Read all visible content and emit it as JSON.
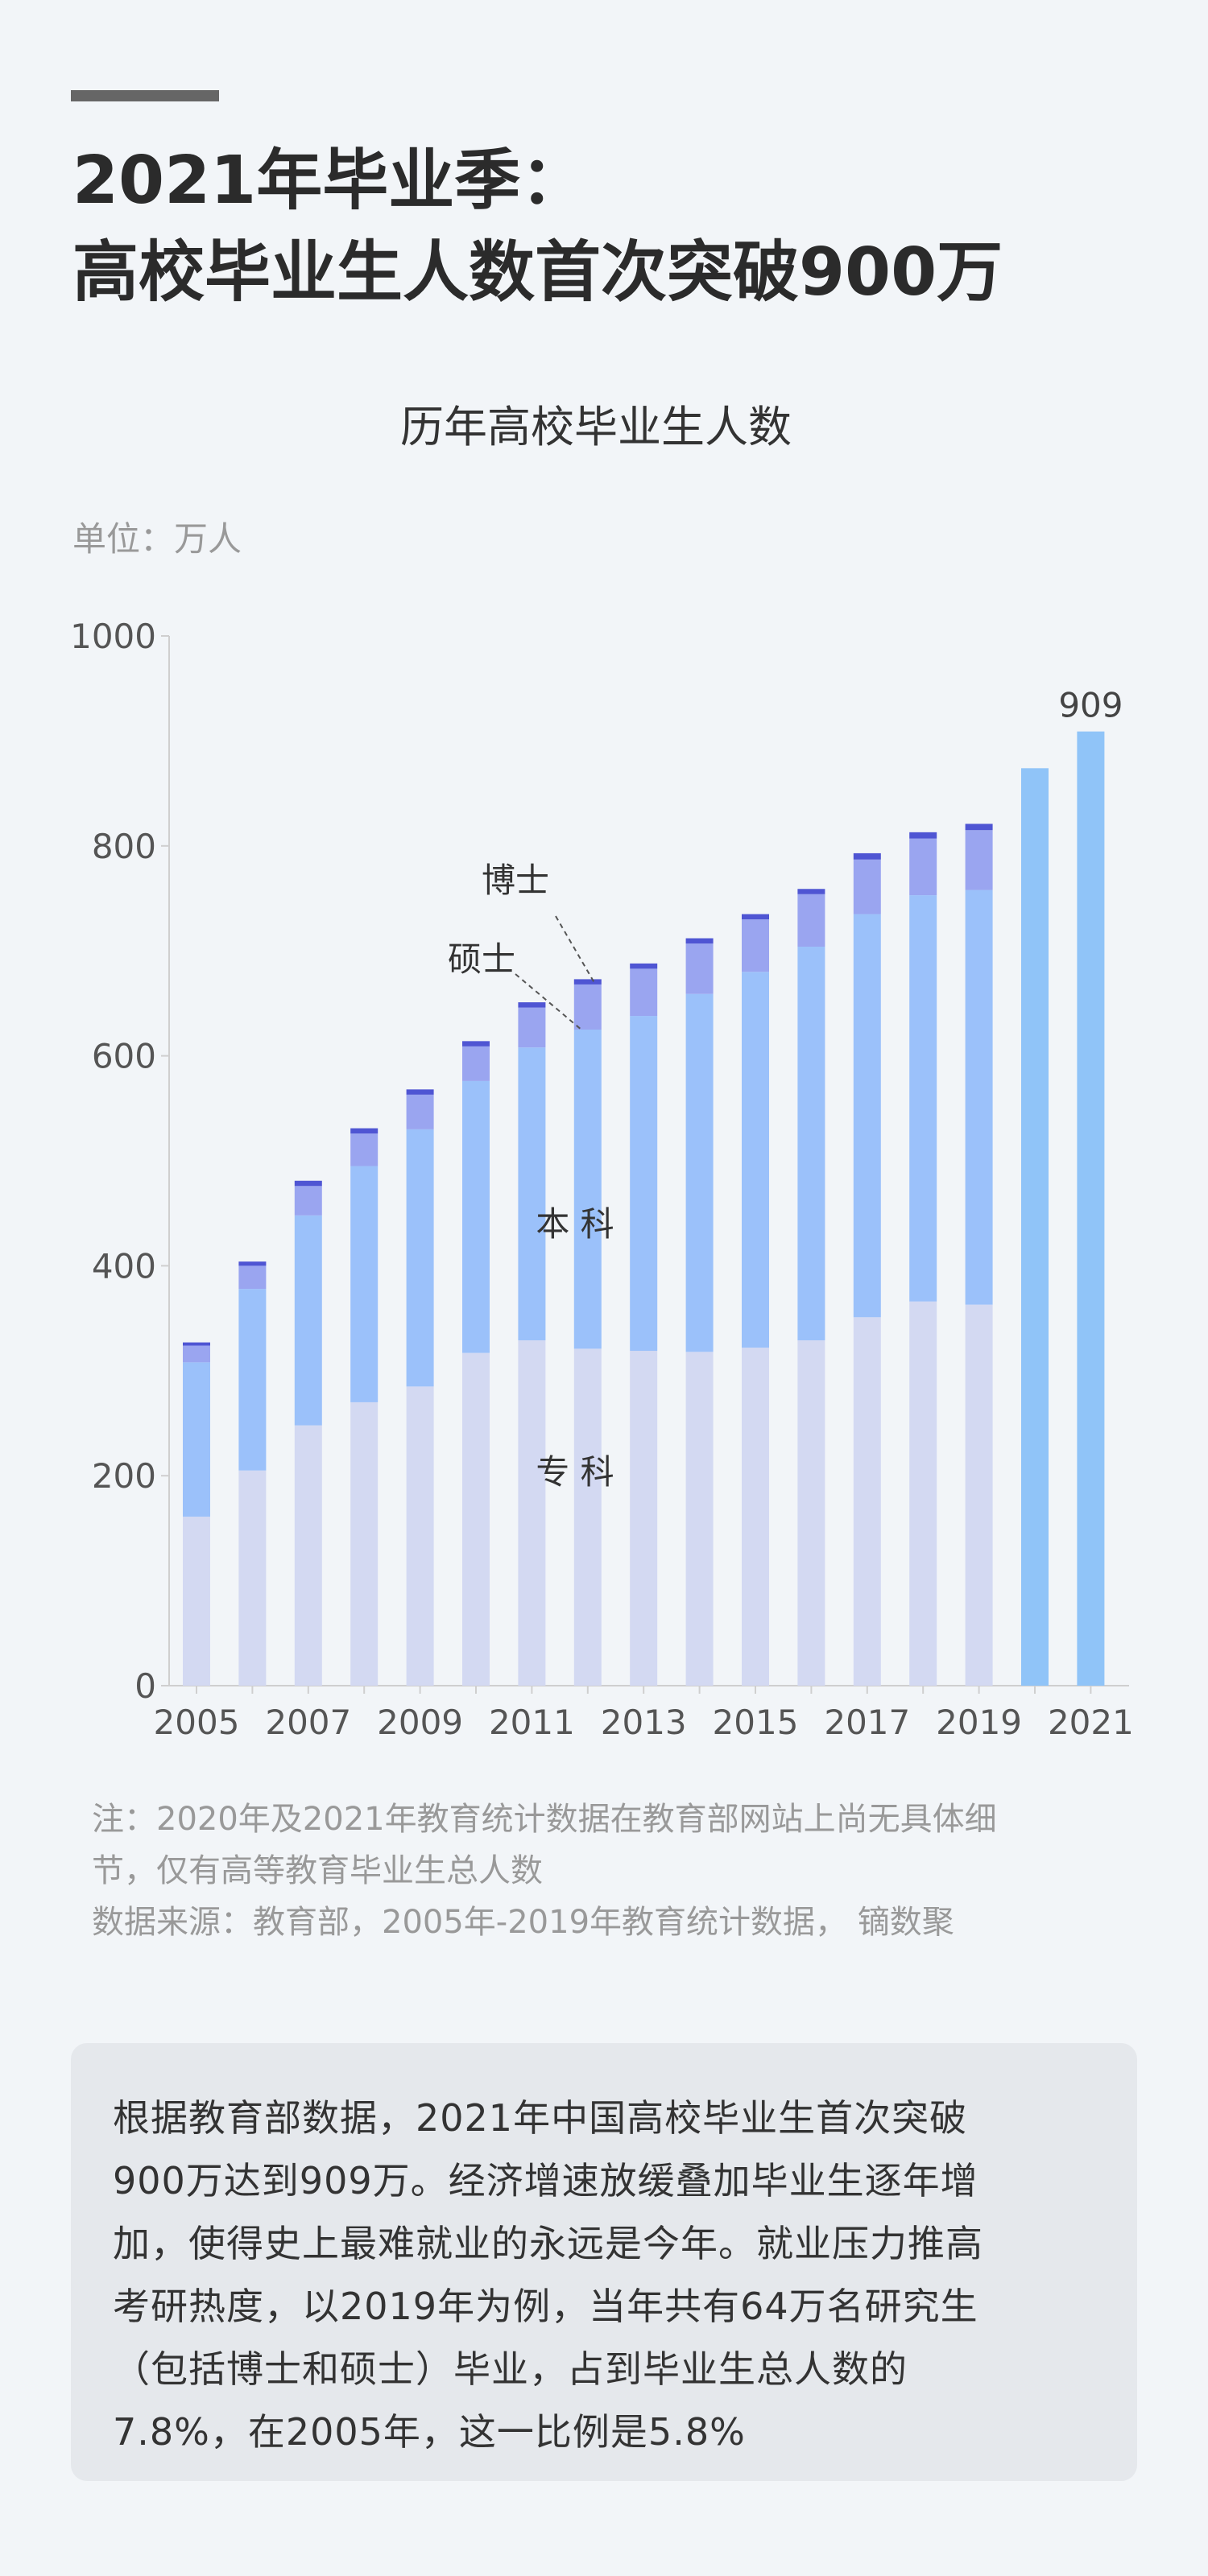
{
  "headline": {
    "line1": "2021年毕业季：",
    "line2": "高校毕业生人数首次突破900万"
  },
  "chart_data": {
    "type": "bar",
    "title": "历年高校毕业生人数",
    "unit_label": "单位：万人",
    "years": [
      2005,
      2006,
      2007,
      2008,
      2009,
      2010,
      2011,
      2012,
      2013,
      2014,
      2015,
      2016,
      2017,
      2018,
      2019,
      2020,
      2021
    ],
    "x_tick_labels": [
      "2005",
      "2007",
      "2009",
      "2011",
      "2013",
      "2015",
      "2017",
      "2019",
      "2021"
    ],
    "ylim": [
      0,
      1000
    ],
    "y_ticks": [
      0,
      200,
      400,
      600,
      800,
      1000
    ],
    "grid": false,
    "stacked": true,
    "series": [
      {
        "name": "专科",
        "color": "#d3d9f2",
        "values": [
          161,
          205,
          248,
          270,
          285,
          317,
          329,
          321,
          319,
          318,
          322,
          329,
          351,
          366,
          363,
          null,
          null
        ]
      },
      {
        "name": "本科",
        "color": "#9bc1fa",
        "values": [
          147,
          173,
          200,
          225,
          245,
          259,
          279,
          304,
          319,
          341,
          358,
          375,
          384,
          387,
          395,
          null,
          null
        ]
      },
      {
        "name": "硕士",
        "color": "#9aa5f0",
        "values": [
          16,
          22,
          28,
          31,
          33,
          33,
          38,
          43,
          45,
          48,
          50,
          50,
          52,
          54,
          57,
          null,
          null
        ]
      },
      {
        "name": "博士",
        "color": "#4f55d3",
        "values": [
          3,
          4,
          5,
          5,
          5,
          5,
          5,
          5,
          5,
          5,
          5,
          5,
          6,
          6,
          6,
          null,
          null
        ]
      }
    ],
    "totals_only": {
      "color": "#90c4f8",
      "values": [
        null,
        null,
        null,
        null,
        null,
        null,
        null,
        null,
        null,
        null,
        null,
        null,
        null,
        null,
        null,
        874,
        909
      ]
    },
    "annotations": {
      "phd": "博士",
      "masters": "硕士",
      "undergrad": "本 科",
      "college": "专 科",
      "value_2021": "909"
    }
  },
  "notes": {
    "note_line1": "注：2020年及2021年教育统计数据在教育部网站上尚无具体细",
    "note_line2": "节，仅有高等教育毕业生总人数",
    "source": "数据来源：教育部，2005年-2019年教育统计数据， 镝数聚"
  },
  "summary": {
    "line1": "根据教育部数据，2021年中国高校毕业生首次突破",
    "line2": "900万达到909万。经济增速放缓叠加毕业生逐年增",
    "line3": "加，使得史上最难就业的永远是今年。就业压力推高",
    "line4": "考研热度，以2019年为例，当年共有64万名研究生",
    "line5": "（包括博士和硕士）毕业，占到毕业生总人数的",
    "line6": "7.8%，在2005年，这一比例是5.8%"
  }
}
